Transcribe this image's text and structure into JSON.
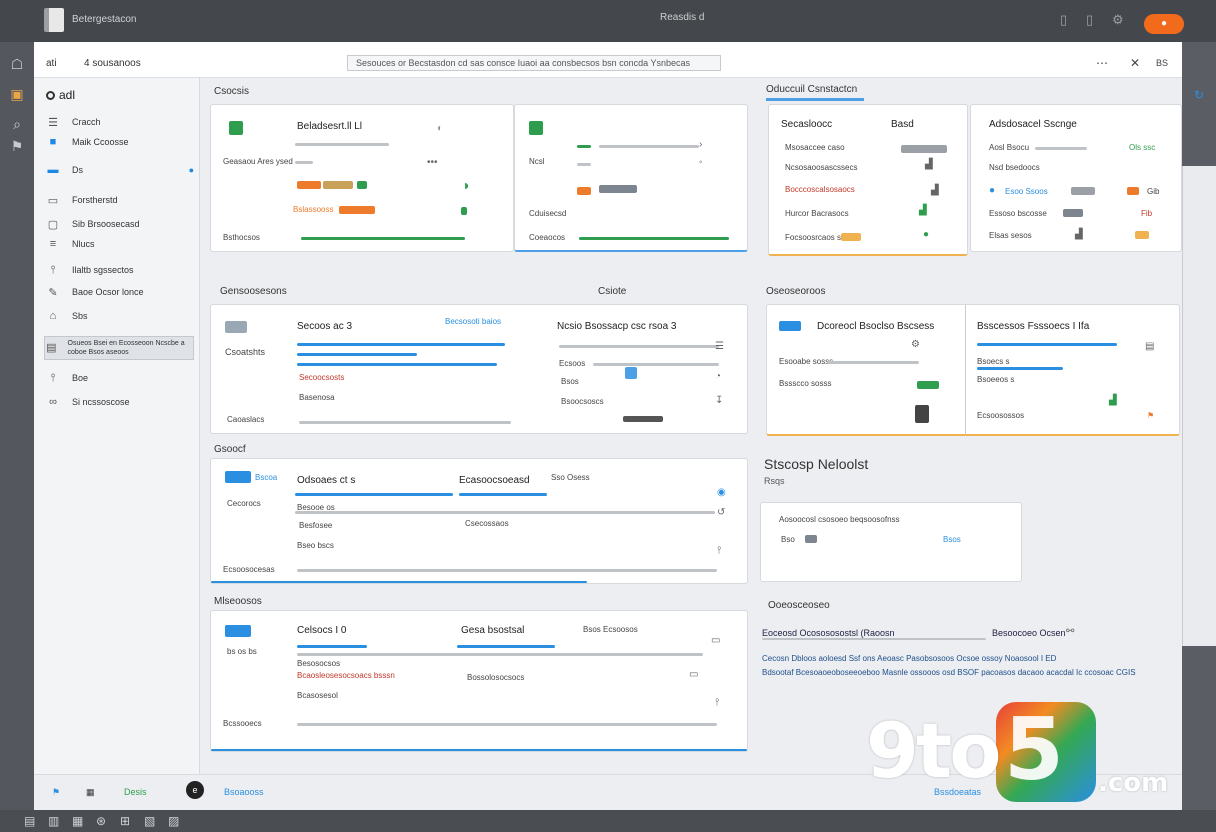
{
  "topbar": {
    "app_title": "Betergestacon",
    "center_title": "Reasdis d",
    "orange_button": "●"
  },
  "window_header": {
    "left_label": "ati",
    "title": "4 sousanoos",
    "address": "Sesouces or Becstasdon cd sas consce Iuaoi aa consbecsos bsn concda Ysnbecas",
    "right_label": "BS"
  },
  "sidebar": {
    "head": "adl",
    "items": [
      {
        "icon": "list-icon",
        "label": "Cracch"
      },
      {
        "icon": "folder-icon",
        "label": "Maik Ccoosse"
      },
      {
        "icon": "card-icon",
        "label": "Ds",
        "badge": "●"
      },
      {
        "icon": "monitor-icon",
        "label": "Forstherstd"
      },
      {
        "icon": "doc-icon",
        "label": "Sib Brsoosecasd"
      },
      {
        "icon": "list-icon",
        "label": "Nlucs"
      },
      {
        "icon": "pin-icon",
        "label": "Ilaltb sgssectos"
      },
      {
        "icon": "edit-icon",
        "label": "Baoe Ocsor lonce"
      },
      {
        "icon": "tag-icon",
        "label": "Sbs"
      },
      {
        "icon": "layers-icon",
        "label": "Osueos Bsei en Ecosseoon Ncscbe a coboe Bsos aseoos"
      },
      {
        "icon": "pin-icon",
        "label": "Boe"
      },
      {
        "icon": "link-icon",
        "label": "Si ncssoscose"
      }
    ]
  },
  "sections": {
    "s1_left": "Csocsis",
    "s1_right": "Oduccuil Csnstactcn",
    "s2_left": "Gensoosesons",
    "s2_mid": "Csiote",
    "s2_right": "Oseoseoroos",
    "s3_left": "Gsoocf",
    "s4_left": "Mlseoosos"
  },
  "cards": {
    "c1": {
      "title": "Beladsesrt.ll Ll",
      "row1": "Geasaou Ares ysed",
      "row2": "Bslassooss",
      "foot": "Bsthocsos"
    },
    "c2": {
      "title": "Cduisecsd",
      "row1": "Ncsl",
      "foot": "Coeaocos"
    },
    "c3": {
      "title": "Secasloocc",
      "title2": "Basd",
      "r1": "Msosaccee caso",
      "r2": "Ncsosaoosascssecs",
      "r3": "Bocccoscalsosaocs",
      "r4": "Hurcor Bacrasocs",
      "r5": "Focsoosrcaos sb"
    },
    "c4": {
      "title": "Adsdosacel Sscnge",
      "r1": "Aosl Bsocu",
      "r2": "Nsd bsedoocs",
      "r3": "Esoo Ssoos",
      "r4": "Essoso bscosse",
      "r5": "Elsas sesos",
      "v1": "Ols ssc",
      "v2": "Gib",
      "v3": "Fib"
    },
    "c5": {
      "title": "Secoos ac 3",
      "link": "Becsosoti baios",
      "left": "Csoatshts",
      "r1": "Secoocsosts",
      "r2": "Basenosa",
      "foot": "Caoaslacs",
      "right_title": "Ncsio Bsossacp csc rsoa 3",
      "rr1": "Ecsoos",
      "rr2": "Bsos",
      "rr3": "Bsoocsoscs"
    },
    "c6": {
      "title": "Dcoreocl Bsoclso Bscsess",
      "r1": "Esooabe sosss",
      "r2": "Bssscco sosss",
      "right_title": "Bsscessos Fsssoecs I Ifa",
      "rr1": "Bsoecs s",
      "rr2": "Bsoeeos s",
      "foot": "Ecsoosossos"
    },
    "c7": {
      "tag": "Bscoa",
      "title": "Odsoaes ct s",
      "title2": "Ecasoocsoeasd",
      "title3": "Sso Osess",
      "left": "Cecorocs",
      "r1": "Besooe os",
      "r2": "Besfosee",
      "r3": "Csecossaos",
      "r4": "Bseo bscs",
      "foot": "Ecsoosocesas"
    },
    "c8": {
      "title": "Celsocs I 0",
      "title2": "Gesa bsostsal",
      "title3": "Bsos Ecsoosos",
      "left": "bs os bs",
      "r1": "Besosocsos",
      "r2": "Bcaosleosesocsoacs bsssn",
      "r3": "Bossolosocsocs",
      "r4": "Bcasosesol",
      "foot": "Bcssooecs"
    }
  },
  "info": {
    "head": "Stscosp Neloolst",
    "sub": "Rsqs",
    "panel_text": "Aosoocosl csosoeo beqsoosofnss",
    "panel_v1": "Bso",
    "panel_v2": "Bsos",
    "o_head": "Ooeosceoseo",
    "o_row": "Eoceosd Ocosososostsl (Raoosn",
    "o_row_right": "Besoocoeo Ocsen",
    "o_line1": "Cecosn Dbloos aoloesd Ssf ons Aeoasc Pasobsosoos Ocsoe ossoy Noaosool I ED",
    "o_line2": "Bdsootaf Bcesoaoeoboseeoeboo Masnle ossooos osd BSOF pacoasos dacaoo acacdal Ic ccosoac CGIS"
  },
  "footer": {
    "i1": "Desis",
    "i2": "Bsoaooss",
    "i3": "Bssdoeatas"
  },
  "watermark": {
    "nine": "9to",
    "five": "5",
    "com": ".com"
  }
}
